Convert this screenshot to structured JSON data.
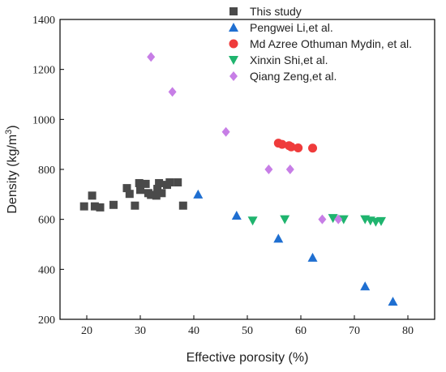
{
  "chart_data": {
    "type": "scatter",
    "xlabel": "Effective porosity (%)",
    "ylabel": "Density (kg/m³)",
    "ylabel_parts": {
      "main": "Density (kg/m",
      "sup": "3",
      "close": ")"
    },
    "xlim": [
      15,
      85
    ],
    "ylim": [
      200,
      1400
    ],
    "xticks": [
      20,
      30,
      40,
      50,
      60,
      70,
      80
    ],
    "yticks": [
      200,
      400,
      600,
      800,
      1000,
      1200,
      1400
    ],
    "grid": false,
    "legend_position": "top-right",
    "series": [
      {
        "name": "This study",
        "marker": "square",
        "color": "#4a4a4a",
        "points": [
          [
            19.5,
            652
          ],
          [
            21,
            695
          ],
          [
            21.5,
            652
          ],
          [
            22.5,
            648
          ],
          [
            25,
            658
          ],
          [
            27.5,
            725
          ],
          [
            28,
            702
          ],
          [
            29,
            655
          ],
          [
            29.8,
            745
          ],
          [
            30,
            718
          ],
          [
            31,
            742
          ],
          [
            31.5,
            705
          ],
          [
            32,
            698
          ],
          [
            33,
            695
          ],
          [
            33.2,
            722
          ],
          [
            33.5,
            745
          ],
          [
            34,
            705
          ],
          [
            35,
            738
          ],
          [
            35.5,
            748
          ],
          [
            37,
            748
          ],
          [
            38,
            655
          ]
        ]
      },
      {
        "name": "Pengwei Li,et al.",
        "marker": "triangle-up",
        "color": "#1f6fd1",
        "points": [
          [
            40.8,
            700
          ],
          [
            48,
            615
          ],
          [
            55.8,
            523
          ],
          [
            62.2,
            447
          ],
          [
            72,
            332
          ],
          [
            77.2,
            271
          ]
        ]
      },
      {
        "name": "Md Azree Othuman Mydin, et al.",
        "marker": "circle",
        "color": "#ef3b3b",
        "points": [
          [
            55.8,
            905
          ],
          [
            56.5,
            900
          ],
          [
            57.8,
            895
          ],
          [
            58.2,
            890
          ],
          [
            59.5,
            886
          ],
          [
            62.2,
            885
          ]
        ]
      },
      {
        "name": "Xinxin Shi,et al.",
        "marker": "triangle-down",
        "color": "#1fb46e",
        "points": [
          [
            51,
            595
          ],
          [
            57,
            600
          ],
          [
            66,
            605
          ],
          [
            68,
            600
          ],
          [
            72,
            600
          ],
          [
            73,
            595
          ],
          [
            74,
            590
          ],
          [
            75,
            593
          ]
        ]
      },
      {
        "name": "Qiang Zeng,et al.",
        "marker": "diamond",
        "color": "#c77ee6",
        "points": [
          [
            32,
            1250
          ],
          [
            36,
            1110
          ],
          [
            46,
            950
          ],
          [
            54,
            800
          ],
          [
            58,
            800
          ],
          [
            64,
            600
          ],
          [
            67,
            600
          ]
        ]
      }
    ]
  }
}
